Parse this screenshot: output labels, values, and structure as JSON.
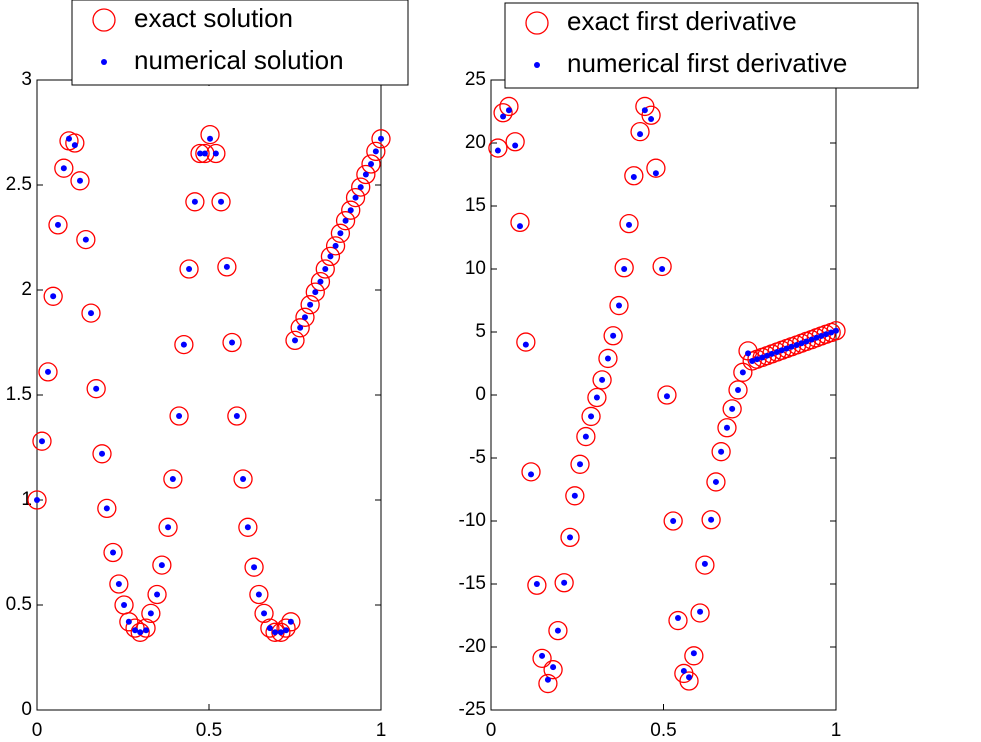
{
  "chart_data": [
    {
      "type": "scatter",
      "x": [
        0,
        0.0145,
        0.032,
        0.047,
        0.061,
        0.078,
        0.093,
        0.11,
        0.125,
        0.142,
        0.157,
        0.172,
        0.189,
        0.203,
        0.221,
        0.238,
        0.253,
        0.267,
        0.285,
        0.3,
        0.317,
        0.331,
        0.349,
        0.363,
        0.381,
        0.395,
        0.413,
        0.427,
        0.442,
        0.459,
        0.474,
        0.488,
        0.503,
        0.52,
        0.535,
        0.552,
        0.567,
        0.581,
        0.599,
        0.613,
        0.631,
        0.645,
        0.66,
        0.677,
        0.692,
        0.709,
        0.724,
        0.738,
        0.75,
        0.765,
        0.779,
        0.794,
        0.809,
        0.824,
        0.838,
        0.853,
        0.868,
        0.882,
        0.897,
        0.912,
        0.926,
        0.941,
        0.956,
        0.971,
        0.985,
        1.0
      ],
      "series": [
        {
          "name": "exact solution",
          "color": "#ff0000",
          "marker": "o",
          "values": [
            1.0,
            1.28,
            1.61,
            1.97,
            2.31,
            2.58,
            2.71,
            2.7,
            2.52,
            2.24,
            1.89,
            1.53,
            1.22,
            0.96,
            0.75,
            0.6,
            0.5,
            0.42,
            0.39,
            0.37,
            0.39,
            0.46,
            0.55,
            0.69,
            0.87,
            1.1,
            1.4,
            1.74,
            2.1,
            2.42,
            2.65,
            2.65,
            2.74,
            2.65,
            2.42,
            2.11,
            1.75,
            1.4,
            1.1,
            0.87,
            0.68,
            0.55,
            0.46,
            0.39,
            0.37,
            0.37,
            0.39,
            0.42,
            1.76,
            1.82,
            1.87,
            1.93,
            1.99,
            2.04,
            2.1,
            2.16,
            2.21,
            2.27,
            2.33,
            2.38,
            2.44,
            2.49,
            2.55,
            2.6,
            2.66,
            2.72
          ]
        },
        {
          "name": "numerical solution",
          "color": "#0000ff",
          "marker": ".",
          "values": [
            1.0,
            1.28,
            1.61,
            1.97,
            2.31,
            2.58,
            2.72,
            2.69,
            2.52,
            2.24,
            1.89,
            1.53,
            1.22,
            0.96,
            0.75,
            0.6,
            0.5,
            0.42,
            0.38,
            0.37,
            0.38,
            0.46,
            0.55,
            0.69,
            0.87,
            1.1,
            1.4,
            1.74,
            2.1,
            2.42,
            2.65,
            2.65,
            2.72,
            2.65,
            2.42,
            2.11,
            1.75,
            1.4,
            1.1,
            0.87,
            0.68,
            0.55,
            0.46,
            0.39,
            0.37,
            0.37,
            0.38,
            0.42,
            1.76,
            1.82,
            1.87,
            1.93,
            1.99,
            2.04,
            2.1,
            2.16,
            2.21,
            2.27,
            2.33,
            2.38,
            2.44,
            2.49,
            2.55,
            2.6,
            2.66,
            2.72
          ]
        }
      ],
      "xlim": [
        0,
        1
      ],
      "xticks": [
        0,
        0.5,
        1
      ],
      "ylim": [
        0,
        3
      ],
      "yticks": [
        0,
        0.5,
        1,
        1.5,
        2,
        2.5,
        3
      ],
      "legend": "top-right"
    },
    {
      "type": "scatter",
      "x": [
        0.02,
        0.035,
        0.052,
        0.07,
        0.084,
        0.101,
        0.116,
        0.133,
        0.148,
        0.165,
        0.18,
        0.194,
        0.212,
        0.229,
        0.243,
        0.258,
        0.275,
        0.29,
        0.307,
        0.322,
        0.339,
        0.354,
        0.371,
        0.386,
        0.4,
        0.414,
        0.432,
        0.446,
        0.464,
        0.478,
        0.496,
        0.51,
        0.528,
        0.542,
        0.559,
        0.574,
        0.588,
        0.606,
        0.62,
        0.638,
        0.652,
        0.667,
        0.684,
        0.699,
        0.716,
        0.73,
        0.745,
        0.757,
        0.771,
        0.786,
        0.8,
        0.814,
        0.829,
        0.843,
        0.857,
        0.871,
        0.886,
        0.9,
        0.914,
        0.929,
        0.943,
        0.957,
        0.971,
        0.986,
        1.0
      ],
      "series": [
        {
          "name": "exact first derivative",
          "color": "#ff0000",
          "marker": "o",
          "values": [
            19.6,
            22.4,
            22.9,
            20.1,
            13.7,
            4.2,
            -6.1,
            -15.1,
            -20.9,
            -22.9,
            -21.8,
            -18.7,
            -14.9,
            -11.3,
            -8.0,
            -5.5,
            -3.3,
            -1.7,
            -0.2,
            1.2,
            2.9,
            4.7,
            7.1,
            10.1,
            13.6,
            17.4,
            20.9,
            22.9,
            22.2,
            18.0,
            10.2,
            0,
            -10.0,
            -17.9,
            -22.1,
            -22.7,
            -20.7,
            -17.3,
            -13.5,
            -9.9,
            -6.9,
            -4.5,
            -2.6,
            -1.1,
            0.4,
            1.8,
            3.5,
            2.7,
            2.84,
            2.98,
            3.12,
            3.26,
            3.41,
            3.55,
            3.69,
            3.83,
            3.97,
            4.11,
            4.25,
            4.39,
            4.54,
            4.68,
            4.82,
            4.96,
            5.1
          ]
        },
        {
          "name": "numerical first derivative",
          "color": "#0000ff",
          "marker": ".",
          "values": [
            19.4,
            22.1,
            22.6,
            19.8,
            13.4,
            4.0,
            -6.3,
            -15.0,
            -20.7,
            -22.6,
            -21.6,
            -18.7,
            -14.9,
            -11.3,
            -8.0,
            -5.5,
            -3.3,
            -1.7,
            -0.2,
            1.2,
            2.9,
            4.7,
            7.1,
            10.0,
            13.5,
            17.3,
            20.7,
            22.6,
            21.9,
            17.6,
            10.0,
            -0.1,
            -10.0,
            -17.7,
            -21.9,
            -22.4,
            -20.5,
            -17.2,
            -13.4,
            -9.9,
            -6.9,
            -4.5,
            -2.6,
            -1.1,
            0.4,
            1.8,
            3.3,
            2.7,
            2.84,
            2.98,
            3.12,
            3.26,
            3.41,
            3.55,
            3.69,
            3.83,
            3.97,
            4.11,
            4.25,
            4.39,
            4.54,
            4.68,
            4.82,
            4.96,
            5.1
          ]
        }
      ],
      "xlim": [
        0,
        1
      ],
      "xticks": [
        0,
        0.5,
        1
      ],
      "ylim": [
        -25,
        25
      ],
      "yticks": [
        -25,
        -20,
        -15,
        -10,
        -5,
        0,
        5,
        10,
        15,
        20,
        25
      ],
      "legend": "top-right"
    }
  ]
}
